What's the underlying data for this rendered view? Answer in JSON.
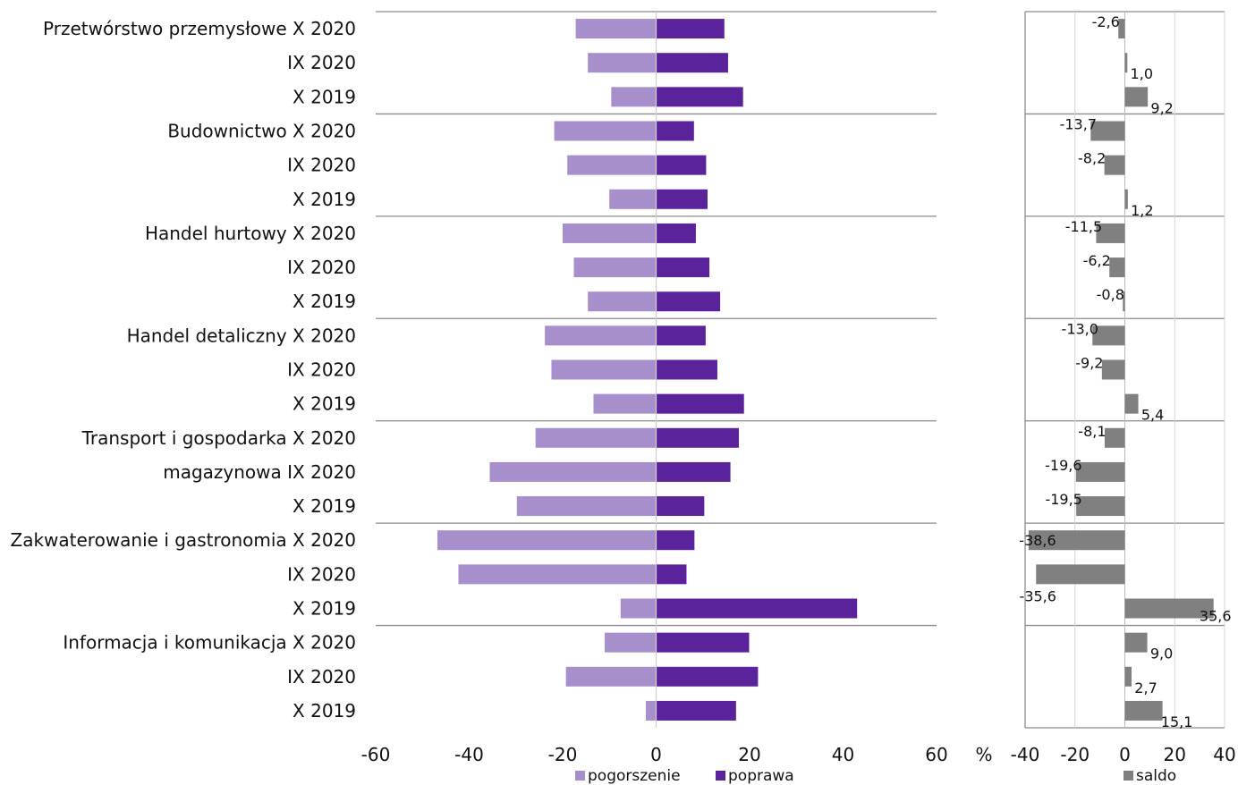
{
  "chart_data": [
    {
      "type": "bar",
      "orientation": "horizontal",
      "stacking": "diverging",
      "categories": [
        "Przetwórstwo przemysłowe X 2020",
        "IX 2020",
        "X 2019",
        "Budownictwo X 2020",
        "IX 2020",
        "X 2019",
        "Handel hurtowy X 2020",
        "IX 2020",
        "X 2019",
        "Handel detaliczny X 2020",
        "IX 2020",
        "X 2019",
        "Transport i gospodarka X 2020",
        "magazynowa  IX 2020",
        "X 2019",
        "Zakwaterowanie i gastronomia X 2020",
        "IX 2020",
        "X 2019",
        "Informacja i komunikacja X 2020",
        "IX 2020",
        "X 2019"
      ],
      "series": [
        {
          "name": "pogorszenie",
          "color": "#a78fcc",
          "values": [
            -17.2,
            -14.6,
            -9.6,
            -21.8,
            -19.0,
            -10.0,
            -20.0,
            -17.6,
            -14.6,
            -23.8,
            -22.4,
            -13.4,
            -25.8,
            -35.6,
            -29.8,
            -46.8,
            -42.3,
            -7.6,
            -11.0,
            -19.3,
            -2.2
          ]
        },
        {
          "name": "poprawa",
          "color": "#5b239b",
          "values": [
            14.6,
            15.4,
            18.6,
            8.1,
            10.7,
            11.0,
            8.5,
            11.4,
            13.7,
            10.6,
            13.1,
            18.8,
            17.7,
            15.9,
            10.3,
            8.2,
            6.5,
            43.0,
            19.9,
            21.8,
            17.1
          ]
        }
      ],
      "xlim": [
        -60,
        60
      ],
      "xticks": [
        "-60",
        "-40",
        "-20",
        "0",
        "20",
        "40",
        "60"
      ],
      "x_unit_label": "%",
      "grid": "group separators only",
      "legend": "bottom"
    },
    {
      "type": "bar",
      "orientation": "horizontal",
      "series": [
        {
          "name": "saldo",
          "color": "#808080",
          "values": [
            -2.6,
            1.0,
            9.2,
            -13.7,
            -8.2,
            1.2,
            -11.5,
            -6.2,
            -0.8,
            -13.0,
            -9.2,
            5.4,
            -8.1,
            -19.6,
            -19.5,
            -38.6,
            -35.6,
            35.6,
            9.0,
            2.7,
            15.1
          ],
          "labels": [
            "-2,6",
            "1,0",
            "9,2",
            "-13,7",
            "-8,2",
            "1,2",
            "-11,5",
            "-6,2",
            "-0,8",
            "-13,0",
            "-9,2",
            "5,4",
            "-8,1",
            "-19,6",
            "-19,5",
            "-38,6",
            "-35,6",
            "35,6",
            "9,0",
            "2,7",
            "15,1"
          ]
        }
      ],
      "xlim": [
        -40,
        40
      ],
      "xticks": [
        "-40",
        "-20",
        "0",
        "20",
        "40"
      ],
      "grid": "vertical",
      "legend": "bottom"
    }
  ]
}
